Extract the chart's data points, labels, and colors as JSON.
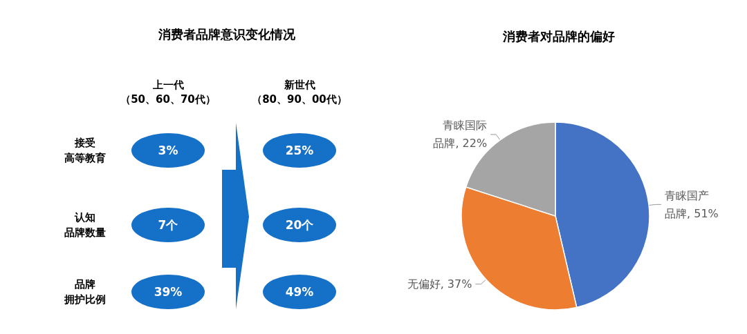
{
  "chart_data": [
    {
      "type": "other",
      "title": "消费者品牌意识变化情况",
      "annotations": [
        "上一代（50、60、70代）",
        "新世代（80、90、00代）",
        "接受高等教育",
        "3%",
        "25%",
        "认知品牌数量",
        "7个",
        "20个",
        "品牌拥护比例",
        "39%",
        "49%"
      ]
    },
    {
      "type": "pie",
      "title": "消费者对品牌的偏好",
      "categories": [
        "青睐国产品牌",
        "无偏好",
        "青睐国际品牌"
      ],
      "values": [
        51,
        37,
        22
      ],
      "value_labels": [
        "51%",
        "37%",
        "22%"
      ],
      "colors": [
        "#4472c4",
        "#ed7d31",
        "#a5a5a5"
      ]
    }
  ]
}
